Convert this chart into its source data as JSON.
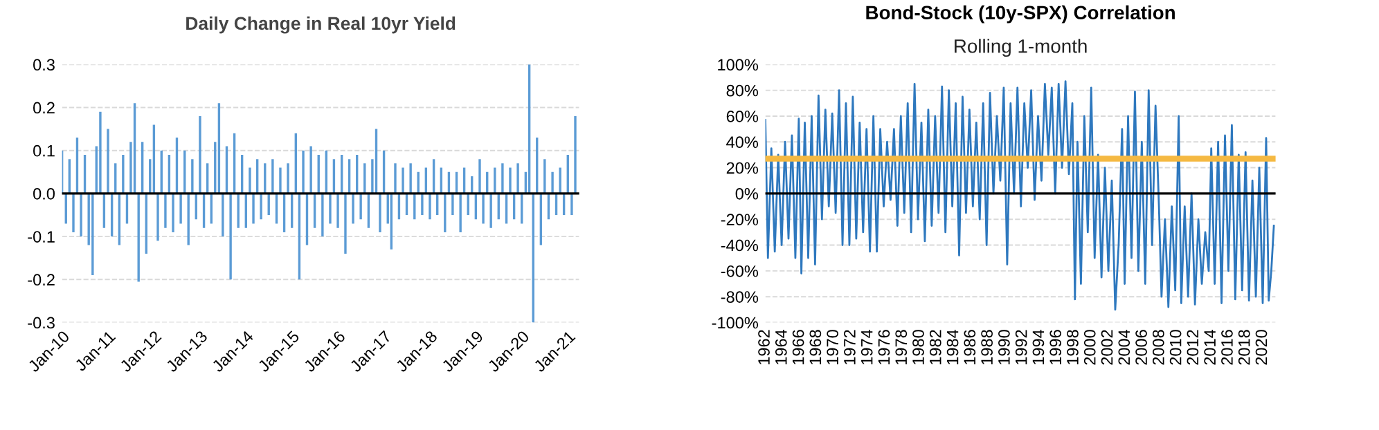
{
  "chart_data": [
    {
      "type": "bar",
      "title": "Daily Change in Real 10yr Yield",
      "grid": "y",
      "x": [
        "2010-01",
        "2010-02",
        "2010-03",
        "2010-04",
        "2010-05",
        "2010-06",
        "2010-07",
        "2010-08",
        "2010-09",
        "2010-10",
        "2010-11",
        "2010-12",
        "2011-01",
        "2011-02",
        "2011-03",
        "2011-04",
        "2011-05",
        "2011-06",
        "2011-07",
        "2011-08",
        "2011-09",
        "2011-10",
        "2011-11",
        "2011-12",
        "2012-01",
        "2012-02",
        "2012-03",
        "2012-04",
        "2012-05",
        "2012-06",
        "2012-07",
        "2012-08",
        "2012-09",
        "2012-10",
        "2012-11",
        "2012-12",
        "2013-01",
        "2013-02",
        "2013-03",
        "2013-04",
        "2013-05",
        "2013-06",
        "2013-07",
        "2013-08",
        "2013-09",
        "2013-10",
        "2013-11",
        "2013-12",
        "2014-01",
        "2014-02",
        "2014-03",
        "2014-04",
        "2014-05",
        "2014-06",
        "2014-07",
        "2014-08",
        "2014-09",
        "2014-10",
        "2014-11",
        "2014-12",
        "2015-01",
        "2015-02",
        "2015-03",
        "2015-04",
        "2015-05",
        "2015-06",
        "2015-07",
        "2015-08",
        "2015-09",
        "2015-10",
        "2015-11",
        "2015-12",
        "2016-01",
        "2016-02",
        "2016-03",
        "2016-04",
        "2016-05",
        "2016-06",
        "2016-07",
        "2016-08",
        "2016-09",
        "2016-10",
        "2016-11",
        "2016-12",
        "2017-01",
        "2017-02",
        "2017-03",
        "2017-04",
        "2017-05",
        "2017-06",
        "2017-07",
        "2017-08",
        "2017-09",
        "2017-10",
        "2017-11",
        "2017-12",
        "2018-01",
        "2018-02",
        "2018-03",
        "2018-04",
        "2018-05",
        "2018-06",
        "2018-07",
        "2018-08",
        "2018-09",
        "2018-10",
        "2018-11",
        "2018-12",
        "2019-01",
        "2019-02",
        "2019-03",
        "2019-04",
        "2019-05",
        "2019-06",
        "2019-07",
        "2019-08",
        "2019-09",
        "2019-10",
        "2019-11",
        "2019-12",
        "2020-01",
        "2020-02",
        "2020-03",
        "2020-04",
        "2020-05",
        "2020-06",
        "2020-07",
        "2020-08",
        "2020-09",
        "2020-10",
        "2020-11",
        "2020-12",
        "2021-01",
        "2021-02",
        "2021-03"
      ],
      "values": [
        0.1,
        -0.07,
        0.08,
        -0.09,
        0.13,
        -0.1,
        0.09,
        -0.12,
        -0.19,
        0.11,
        0.19,
        -0.08,
        0.15,
        -0.1,
        0.07,
        -0.12,
        0.09,
        -0.07,
        0.12,
        0.21,
        -0.205,
        0.12,
        -0.14,
        0.08,
        0.16,
        -0.11,
        0.1,
        -0.08,
        0.09,
        -0.09,
        0.13,
        -0.07,
        0.1,
        -0.12,
        0.08,
        -0.06,
        0.18,
        -0.08,
        0.07,
        -0.07,
        0.12,
        0.21,
        -0.1,
        0.11,
        -0.2,
        0.14,
        -0.08,
        0.09,
        -0.08,
        0.06,
        -0.07,
        0.08,
        -0.06,
        0.07,
        -0.05,
        0.08,
        -0.07,
        0.06,
        -0.09,
        0.07,
        -0.08,
        0.14,
        -0.2,
        0.1,
        -0.12,
        0.11,
        -0.08,
        0.09,
        -0.1,
        0.1,
        -0.07,
        0.08,
        -0.08,
        0.09,
        -0.14,
        0.08,
        -0.07,
        0.09,
        -0.06,
        0.07,
        -0.08,
        0.08,
        0.15,
        -0.09,
        0.1,
        -0.07,
        -0.13,
        0.07,
        -0.06,
        0.06,
        -0.05,
        0.07,
        -0.06,
        0.05,
        -0.05,
        0.06,
        -0.06,
        0.08,
        -0.05,
        0.06,
        -0.09,
        0.05,
        -0.05,
        0.05,
        -0.09,
        0.06,
        -0.05,
        0.04,
        -0.06,
        0.08,
        -0.07,
        0.05,
        -0.08,
        0.06,
        -0.06,
        0.07,
        -0.07,
        0.06,
        -0.06,
        0.07,
        -0.07,
        0.05,
        0.3,
        -0.3,
        0.13,
        -0.12,
        0.08,
        -0.06,
        0.05,
        -0.05,
        0.06,
        -0.05,
        0.09,
        -0.05,
        0.18
      ],
      "color": "#5b9bd5",
      "xlim": [
        "2010-01",
        "2021-04"
      ],
      "xticks": [
        {
          "value": "2010-01",
          "label": "Jan-10"
        },
        {
          "value": "2011-01",
          "label": "Jan-11"
        },
        {
          "value": "2012-01",
          "label": "Jan-12"
        },
        {
          "value": "2013-01",
          "label": "Jan-13"
        },
        {
          "value": "2014-01",
          "label": "Jan-14"
        },
        {
          "value": "2015-01",
          "label": "Jan-15"
        },
        {
          "value": "2016-01",
          "label": "Jan-16"
        },
        {
          "value": "2017-01",
          "label": "Jan-17"
        },
        {
          "value": "2018-01",
          "label": "Jan-18"
        },
        {
          "value": "2019-01",
          "label": "Jan-19"
        },
        {
          "value": "2020-01",
          "label": "Jan-20"
        },
        {
          "value": "2021-01",
          "label": "Jan-21"
        }
      ],
      "ylim": [
        -0.3,
        0.3
      ],
      "yticks": [
        {
          "value": 0.3,
          "label": "0.3"
        },
        {
          "value": 0.2,
          "label": "0.2"
        },
        {
          "value": 0.1,
          "label": "0.1"
        },
        {
          "value": 0,
          "label": "0.0"
        },
        {
          "value": -0.1,
          "label": "-0.1"
        },
        {
          "value": -0.2,
          "label": "-0.2"
        },
        {
          "value": -0.3,
          "label": "-0.3"
        }
      ]
    },
    {
      "type": "line",
      "title": "Bond-Stock (10y-SPX) Correlation",
      "subtitle": "Rolling 1-month",
      "grid": "y",
      "color": "#2e78be",
      "x": [
        1962.0,
        1962.3,
        1962.7,
        1963.1,
        1963.5,
        1963.9,
        1964.3,
        1964.7,
        1965.1,
        1965.5,
        1965.9,
        1966.2,
        1966.6,
        1967.0,
        1967.4,
        1967.8,
        1968.2,
        1968.6,
        1969.0,
        1969.4,
        1969.8,
        1970.2,
        1970.6,
        1971.0,
        1971.4,
        1971.8,
        1972.2,
        1972.6,
        1973.0,
        1973.4,
        1973.8,
        1974.2,
        1974.6,
        1975.0,
        1975.4,
        1975.8,
        1976.2,
        1976.6,
        1977.0,
        1977.4,
        1977.8,
        1978.2,
        1978.6,
        1979.0,
        1979.4,
        1979.8,
        1980.2,
        1980.6,
        1981.0,
        1981.4,
        1981.8,
        1982.2,
        1982.6,
        1983.0,
        1983.4,
        1983.8,
        1984.2,
        1984.6,
        1985.0,
        1985.4,
        1985.8,
        1986.2,
        1986.6,
        1987.0,
        1987.4,
        1987.8,
        1988.2,
        1988.6,
        1989.0,
        1989.4,
        1989.8,
        1990.2,
        1990.6,
        1991.0,
        1991.4,
        1991.8,
        1992.2,
        1992.6,
        1993.0,
        1993.4,
        1993.8,
        1994.2,
        1994.6,
        1995.0,
        1995.4,
        1995.8,
        1996.2,
        1996.6,
        1997.0,
        1997.4,
        1997.8,
        1998.1,
        1998.4,
        1998.8,
        1999.2,
        1999.6,
        2000.0,
        2000.4,
        2000.8,
        2001.2,
        2001.6,
        2002.0,
        2002.4,
        2002.8,
        2003.2,
        2003.6,
        2003.9,
        2004.3,
        2004.7,
        2005.1,
        2005.5,
        2005.9,
        2006.3,
        2006.7,
        2007.1,
        2007.5,
        2007.9,
        2008.2,
        2008.6,
        2009.0,
        2009.4,
        2009.8,
        2010.2,
        2010.5,
        2010.9,
        2011.3,
        2011.7,
        2012.1,
        2012.5,
        2012.9,
        2013.3,
        2013.7,
        2014.0,
        2014.4,
        2014.8,
        2015.2,
        2015.6,
        2016.0,
        2016.4,
        2016.8,
        2017.2,
        2017.6,
        2018.0,
        2018.4,
        2018.8,
        2019.2,
        2019.6,
        2020.0,
        2020.4,
        2020.7,
        2021.0,
        2021.3
      ],
      "values": [
        57,
        -50,
        35,
        -45,
        30,
        -40,
        40,
        -35,
        45,
        -50,
        58,
        -62,
        55,
        -50,
        60,
        -55,
        76,
        -20,
        65,
        -10,
        62,
        -15,
        80,
        -40,
        70,
        -40,
        75,
        -35,
        55,
        -30,
        50,
        -45,
        60,
        -45,
        50,
        -10,
        40,
        -5,
        50,
        -25,
        60,
        -15,
        70,
        -30,
        85,
        -20,
        55,
        -37,
        65,
        -25,
        60,
        -15,
        83,
        -30,
        80,
        -10,
        70,
        -48,
        75,
        -15,
        65,
        -10,
        55,
        -20,
        70,
        -40,
        78,
        0,
        60,
        10,
        82,
        -55,
        70,
        0,
        82,
        -10,
        70,
        20,
        80,
        -5,
        60,
        10,
        85,
        30,
        82,
        0,
        85,
        20,
        87,
        15,
        70,
        -82,
        40,
        -70,
        60,
        -30,
        82,
        -50,
        30,
        -65,
        20,
        -60,
        10,
        -90,
        -40,
        50,
        -70,
        60,
        -50,
        79,
        -60,
        40,
        -70,
        80,
        -40,
        68,
        -10,
        -80,
        -20,
        -88,
        -10,
        -75,
        60,
        -85,
        -10,
        -80,
        0,
        -86,
        -20,
        -70,
        -30,
        -60,
        35,
        -70,
        40,
        -85,
        45,
        -60,
        53,
        -82,
        30,
        -75,
        32,
        -83,
        10,
        -80,
        20,
        -85,
        43,
        -83,
        -60,
        -25
      ],
      "xlim": [
        1962,
        2021.5
      ],
      "xticks": [
        1962,
        1964,
        1966,
        1968,
        1970,
        1972,
        1974,
        1976,
        1978,
        1980,
        1982,
        1984,
        1986,
        1988,
        1990,
        1992,
        1994,
        1996,
        1998,
        2000,
        2002,
        2004,
        2006,
        2008,
        2010,
        2012,
        2014,
        2016,
        2018,
        2020
      ],
      "ylim": [
        -100,
        100
      ],
      "yticks": [
        {
          "value": 100,
          "label": "100%"
        },
        {
          "value": 80,
          "label": "80%"
        },
        {
          "value": 60,
          "label": "60%"
        },
        {
          "value": 40,
          "label": "40%"
        },
        {
          "value": 20,
          "label": "20%"
        },
        {
          "value": 0,
          "label": "0%"
        },
        {
          "value": -20,
          "label": "-20%"
        },
        {
          "value": -40,
          "label": "-40%"
        },
        {
          "value": -60,
          "label": "-60%"
        },
        {
          "value": -80,
          "label": "-80%"
        },
        {
          "value": -100,
          "label": "-100%"
        }
      ],
      "ref_lines": [
        {
          "axis": "y",
          "value": 27,
          "color": "#f5b942"
        }
      ]
    }
  ]
}
